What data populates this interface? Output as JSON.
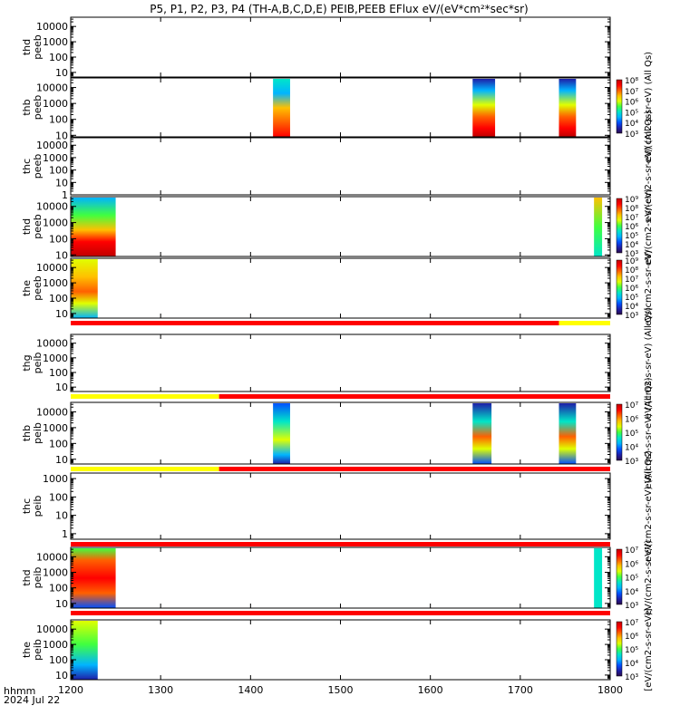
{
  "title": "P5, P1, P2, P3, P4 (TH-A,B,C,D,E) PEIB,PEEB EFlux eV/(eV*cm²*sec*sr)",
  "footer": {
    "axis_label_line1": "hhmm",
    "axis_label_line2": "2024 Jul 22"
  },
  "colors": {
    "spectrogram": [
      "#2b0a4a",
      "#1e1ea8",
      "#0050ff",
      "#00b4ff",
      "#00e6c8",
      "#40ff40",
      "#e0ff00",
      "#ffc000",
      "#ff6000",
      "#ff0000",
      "#c00000"
    ],
    "flag_red": "#ff0000",
    "flag_yellow": "#ffff00"
  },
  "chart_data": {
    "type": "heatmap",
    "x_ticks": [
      "1200",
      "1300",
      "1400",
      "1500",
      "1600",
      "1700",
      "1800"
    ],
    "xlim": [
      1200,
      1800
    ],
    "y_scale": "log",
    "y_ticks": [
      "10",
      "100",
      "1000",
      "10000"
    ],
    "panels": [
      {
        "label1": "thd",
        "label2": "peeb",
        "ylim": [
          5,
          40000
        ],
        "yticks": [
          "10",
          "100",
          "1000",
          "10000"
        ],
        "first_tick_label": "",
        "colorbar": null,
        "blocks": []
      },
      {
        "label1": "thb",
        "label2": "peeb",
        "ylim": [
          8,
          40000
        ],
        "yticks": [
          "10",
          "100",
          "1000",
          "10000"
        ],
        "first_tick_label": "",
        "colorbar": {
          "labels": [
            "10⁸",
            "10⁷",
            "10⁶",
            "10⁵",
            "10⁴",
            "10³"
          ],
          "title": "eV/(cm2-s-sr-eV) (All Qs)"
        },
        "blocks": [
          {
            "x0": 1425,
            "x1": 1444,
            "palette": "p1"
          },
          {
            "x0": 1647,
            "x1": 1672,
            "palette": "p2"
          },
          {
            "x0": 1743,
            "x1": 1762,
            "palette": "p2"
          }
        ]
      },
      {
        "label1": "thc",
        "label2": "peeb",
        "ylim": [
          1,
          40000
        ],
        "yticks": [
          "1",
          "10",
          "100",
          "1000",
          "10000"
        ],
        "first_tick_label": "1",
        "colorbar": {
          "labels": [],
          "title": "eV/(cm2-s-sr-eV) (All Qs)"
        },
        "blocks": []
      },
      {
        "label1": "thd",
        "label2": "peeb",
        "ylim": [
          8,
          40000
        ],
        "yticks": [
          "10",
          "100",
          "1000",
          "10000"
        ],
        "first_tick_label": "",
        "colorbar": {
          "labels": [
            "10⁹",
            "10⁸",
            "10⁷",
            "10⁶",
            "10⁵",
            "10⁴",
            "10³"
          ],
          "title": "eV/(cm2-s-sr-eV)"
        },
        "blocks": [
          {
            "x0": 1200,
            "x1": 1250,
            "palette": "p3"
          },
          {
            "x0": 1782,
            "x1": 1791,
            "palette": "p4"
          }
        ]
      },
      {
        "label1": "the",
        "label2": "peeb",
        "ylim": [
          5,
          40000
        ],
        "yticks": [
          "10",
          "100",
          "1000",
          "10000"
        ],
        "first_tick_label": "",
        "colorbar": {
          "labels": [
            "10⁹",
            "10⁸",
            "10⁷",
            "10⁶",
            "10⁵",
            "10⁴",
            "10³"
          ],
          "title": "eV/(cm2-s-sr-eV)"
        },
        "blocks": [
          {
            "x0": 1200,
            "x1": 1230,
            "palette": "p5"
          }
        ],
        "flag_below": [
          {
            "x0": 1200,
            "x1": 1743,
            "color": "red"
          },
          {
            "x0": 1743,
            "x1": 1800,
            "color": "yellow"
          }
        ]
      },
      {
        "label1": "thg",
        "label2": "peib",
        "ylim": [
          5,
          40000
        ],
        "yticks": [
          "10",
          "100",
          "1000",
          "10000"
        ],
        "first_tick_label": "",
        "colorbar": {
          "labels": [],
          "title": "eV/(cm2-s-sr-eV) (All Qs)"
        },
        "blocks": [],
        "flag_below": [
          {
            "x0": 1200,
            "x1": 1365,
            "color": "yellow"
          },
          {
            "x0": 1365,
            "x1": 1800,
            "color": "red"
          }
        ]
      },
      {
        "label1": "thb",
        "label2": "peib",
        "ylim": [
          5,
          40000
        ],
        "yticks": [
          "10",
          "100",
          "1000",
          "10000"
        ],
        "first_tick_label": "",
        "colorbar": {
          "labels": [
            "10⁷",
            "10⁶",
            "10⁵",
            "10⁴",
            "10³"
          ],
          "title": "eV/(cm2-s-sr-eV) (All Qs)"
        },
        "blocks": [
          {
            "x0": 1425,
            "x1": 1444,
            "palette": "p6"
          },
          {
            "x0": 1647,
            "x1": 1668,
            "palette": "p7"
          },
          {
            "x0": 1743,
            "x1": 1762,
            "palette": "p7"
          }
        ],
        "flag_below": [
          {
            "x0": 1200,
            "x1": 1365,
            "color": "yellow"
          },
          {
            "x0": 1365,
            "x1": 1800,
            "color": "red"
          }
        ]
      },
      {
        "label1": "thc",
        "label2": "peib",
        "ylim": [
          0.5,
          2000
        ],
        "yticks": [
          "1",
          "10",
          "100",
          "1000"
        ],
        "first_tick_label": "1",
        "colorbar": {
          "labels": [],
          "title": "eV/(cm2-s-sr-eV) (All Qs)"
        },
        "blocks": [],
        "flag_below": [
          {
            "x0": 1200,
            "x1": 1800,
            "color": "red"
          }
        ]
      },
      {
        "label1": "thd",
        "label2": "peib",
        "ylim": [
          5,
          40000
        ],
        "yticks": [
          "10",
          "100",
          "1000",
          "10000"
        ],
        "first_tick_label": "",
        "colorbar": {
          "labels": [
            "10⁷",
            "10⁶",
            "10⁵",
            "10⁴",
            "10³"
          ],
          "title": "eV/(cm2-s-sr-eV)"
        },
        "blocks": [
          {
            "x0": 1200,
            "x1": 1250,
            "palette": "p8"
          },
          {
            "x0": 1782,
            "x1": 1791,
            "palette": "p9"
          }
        ],
        "flag_below": [
          {
            "x0": 1200,
            "x1": 1800,
            "color": "red"
          }
        ]
      },
      {
        "label1": "the",
        "label2": "peib",
        "ylim": [
          5,
          40000
        ],
        "yticks": [
          "10",
          "100",
          "1000",
          "10000"
        ],
        "first_tick_label": "",
        "colorbar": {
          "labels": [
            "10⁷",
            "10⁶",
            "10⁵",
            "10⁴",
            "10³"
          ],
          "title": "[eV/(cm2-s-sr-eV)]"
        },
        "blocks": [
          {
            "x0": 1200,
            "x1": 1230,
            "palette": "p10"
          }
        ]
      }
    ]
  }
}
